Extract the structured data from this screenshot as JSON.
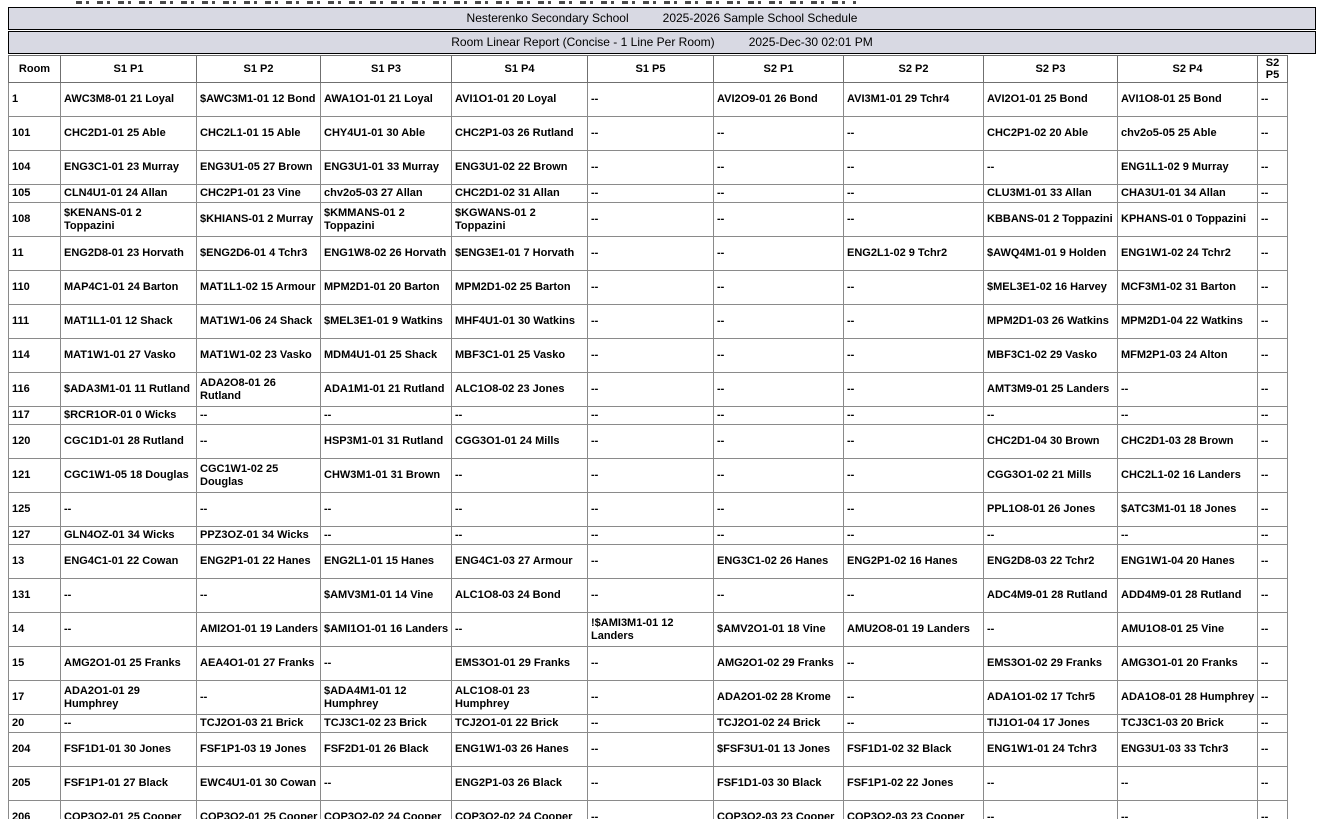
{
  "header": {
    "school_name": "Nesterenko Secondary School",
    "schedule_title": "2025-2026 Sample School Schedule",
    "report_title": "Room Linear Report (Concise - 1 Line Per Room)",
    "generated_datetime": "2025-Dec-30 02:01 PM"
  },
  "table": {
    "columns": [
      "Room",
      "S1 P1",
      "S1 P2",
      "S1 P3",
      "S1 P4",
      "S1 P5",
      "S2 P1",
      "S2 P2",
      "S2 P3",
      "S2 P4",
      "S2 P5"
    ],
    "empty_cell_marker": "--",
    "rows": [
      {
        "room": "1",
        "cells": [
          "AWC3M8-01 21 Loyal",
          "$AWC3M1-01 12 Bond",
          "AWA1O1-01 21 Loyal",
          "AVI1O1-01 20 Loyal",
          "--",
          "AVI2O9-01 26 Bond",
          "AVI3M1-01 29 Tchr4",
          "AVI2O1-01 25 Bond",
          "AVI1O8-01 25 Bond",
          "--"
        ]
      },
      {
        "room": "101",
        "cells": [
          "CHC2D1-01 25 Able",
          "CHC2L1-01 15 Able",
          "CHY4U1-01 30 Able",
          "CHC2P1-03 26 Rutland",
          "--",
          "--",
          "--",
          "CHC2P1-02 20 Able",
          "chv2o5-05 25 Able",
          "--"
        ]
      },
      {
        "room": "104",
        "cells": [
          "ENG3C1-01 23 Murray",
          "ENG3U1-05 27 Brown",
          "ENG3U1-01 33 Murray",
          "ENG3U1-02 22 Brown",
          "--",
          "--",
          "--",
          "--",
          "ENG1L1-02 9 Murray",
          "--"
        ]
      },
      {
        "room": "105",
        "cells": [
          "CLN4U1-01 24 Allan",
          "CHC2P1-01 23 Vine",
          "chv2o5-03 27 Allan",
          "CHC2D1-02 31 Allan",
          "--",
          "--",
          "--",
          "CLU3M1-01 33 Allan",
          "CHA3U1-01 34 Allan",
          "--"
        ]
      },
      {
        "room": "108",
        "cells": [
          "$KENANS-01 2 Toppazini",
          "$KHIANS-01 2 Murray",
          "$KMMANS-01 2 Toppazini",
          "$KGWANS-01 2 Toppazini",
          "--",
          "--",
          "--",
          "KBBANS-01 2 Toppazini",
          "KPHANS-01 0 Toppazini",
          "--"
        ]
      },
      {
        "room": "11",
        "cells": [
          "ENG2D8-01 23 Horvath",
          "$ENG2D6-01 4 Tchr3",
          "ENG1W8-02 26 Horvath",
          "$ENG3E1-01 7 Horvath",
          "--",
          "--",
          "ENG2L1-02 9 Tchr2",
          "$AWQ4M1-01 9 Holden",
          "ENG1W1-02 24 Tchr2",
          "--"
        ]
      },
      {
        "room": "110",
        "cells": [
          "MAP4C1-01 24 Barton",
          "MAT1L1-02 15 Armour",
          "MPM2D1-01 20 Barton",
          "MPM2D1-02 25 Barton",
          "--",
          "--",
          "--",
          "$MEL3E1-02 16 Harvey",
          "MCF3M1-02 31 Barton",
          "--"
        ]
      },
      {
        "room": "111",
        "cells": [
          "MAT1L1-01 12 Shack",
          "MAT1W1-06 24 Shack",
          "$MEL3E1-01 9 Watkins",
          "MHF4U1-01 30 Watkins",
          "--",
          "--",
          "--",
          "MPM2D1-03 26 Watkins",
          "MPM2D1-04 22 Watkins",
          "--"
        ]
      },
      {
        "room": "114",
        "cells": [
          "MAT1W1-01 27 Vasko",
          "MAT1W1-02 23 Vasko",
          "MDM4U1-01 25 Shack",
          "MBF3C1-01 25 Vasko",
          "--",
          "--",
          "--",
          "MBF3C1-02 29 Vasko",
          "MFM2P1-03 24 Alton",
          "--"
        ]
      },
      {
        "room": "116",
        "cells": [
          "$ADA3M1-01 11 Rutland",
          "ADA2O8-01 26 Rutland",
          "ADA1M1-01 21 Rutland",
          "ALC1O8-02 23 Jones",
          "--",
          "--",
          "--",
          "AMT3M9-01 25 Landers",
          "--",
          "--"
        ]
      },
      {
        "room": "117",
        "cells": [
          "$RCR1OR-01 0 Wicks",
          "--",
          "--",
          "--",
          "--",
          "--",
          "--",
          "--",
          "--",
          "--"
        ]
      },
      {
        "room": "120",
        "cells": [
          "CGC1D1-01 28 Rutland",
          "--",
          "HSP3M1-01 31 Rutland",
          "CGG3O1-01 24 Mills",
          "--",
          "--",
          "--",
          "CHC2D1-04 30 Brown",
          "CHC2D1-03 28 Brown",
          "--"
        ]
      },
      {
        "room": "121",
        "cells": [
          "CGC1W1-05 18 Douglas",
          "CGC1W1-02 25 Douglas",
          "CHW3M1-01 31 Brown",
          "--",
          "--",
          "--",
          "--",
          "CGG3O1-02 21 Mills",
          "CHC2L1-02 16 Landers",
          "--"
        ]
      },
      {
        "room": "125",
        "cells": [
          "--",
          "--",
          "--",
          "--",
          "--",
          "--",
          "--",
          "PPL1O8-01 26 Jones",
          "$ATC3M1-01 18 Jones",
          "--"
        ]
      },
      {
        "room": "127",
        "cells": [
          "GLN4OZ-01 34 Wicks",
          "PPZ3OZ-01 34 Wicks",
          "--",
          "--",
          "--",
          "--",
          "--",
          "--",
          "--",
          "--"
        ]
      },
      {
        "room": "13",
        "cells": [
          "ENG4C1-01 22 Cowan",
          "ENG2P1-01 22 Hanes",
          "ENG2L1-01 15 Hanes",
          "ENG4C1-03 27 Armour",
          "--",
          "ENG3C1-02 26 Hanes",
          "ENG2P1-02 16 Hanes",
          "ENG2D8-03 22 Tchr2",
          "ENG1W1-04 20 Hanes",
          "--"
        ]
      },
      {
        "room": "131",
        "cells": [
          "--",
          "--",
          "$AMV3M1-01 14 Vine",
          "ALC1O8-03 24 Bond",
          "--",
          "--",
          "--",
          "ADC4M9-01 28 Rutland",
          "ADD4M9-01 28 Rutland",
          "--"
        ]
      },
      {
        "room": "14",
        "cells": [
          "--",
          "AMI2O1-01 19 Landers",
          "$AMI1O1-01 16 Landers",
          "--",
          "!$AMI3M1-01 12 Landers",
          "$AMV2O1-01 18 Vine",
          "AMU2O8-01 19 Landers",
          "--",
          "AMU1O8-01 25 Vine",
          "--"
        ]
      },
      {
        "room": "15",
        "cells": [
          "AMG2O1-01 25 Franks",
          "AEA4O1-01 27 Franks",
          "--",
          "EMS3O1-01 29 Franks",
          "--",
          "AMG2O1-02 29 Franks",
          "--",
          "EMS3O1-02 29 Franks",
          "AMG3O1-01 20 Franks",
          "--"
        ]
      },
      {
        "room": "17",
        "cells": [
          "ADA2O1-01 29 Humphrey",
          "--",
          "$ADA4M1-01 12 Humphrey",
          "ALC1O8-01 23 Humphrey",
          "--",
          "ADA2O1-02 28 Krome",
          "--",
          "ADA1O1-02 17 Tchr5",
          "ADA1O8-01 28 Humphrey",
          "--"
        ]
      },
      {
        "room": "20",
        "cells": [
          "--",
          "TCJ2O1-03 21 Brick",
          "TCJ3C1-02 23 Brick",
          "TCJ2O1-01 22 Brick",
          "--",
          "TCJ2O1-02 24 Brick",
          "--",
          "TIJ1O1-04 17 Jones",
          "TCJ3C1-03 20 Brick",
          "--"
        ]
      },
      {
        "room": "204",
        "cells": [
          "FSF1D1-01 30 Jones",
          "FSF1P1-03 19 Jones",
          "FSF2D1-01 26 Black",
          "ENG1W1-03 26 Hanes",
          "--",
          "$FSF3U1-01 13 Jones",
          "FSF1D1-02 32 Black",
          "ENG1W1-01 24 Tchr3",
          "ENG3U1-03 33 Tchr3",
          "--"
        ]
      },
      {
        "room": "205",
        "cells": [
          "FSF1P1-01 27 Black",
          "EWC4U1-01 30 Cowan",
          "--",
          "ENG2P1-03 26 Black",
          "--",
          "FSF1D1-03 30 Black",
          "FSF1P1-02 22 Jones",
          "--",
          "--",
          "--"
        ]
      },
      {
        "room": "206",
        "cells": [
          "COP3O2-01 25 Cooper",
          "COP3O2-01 25 Cooper",
          "COP3O2-02 24 Cooper",
          "COP3O2-02 24 Cooper",
          "--",
          "COP3O2-03 23 Cooper",
          "COP3O2-03 23 Cooper",
          "--",
          "--",
          "--"
        ]
      }
    ]
  }
}
